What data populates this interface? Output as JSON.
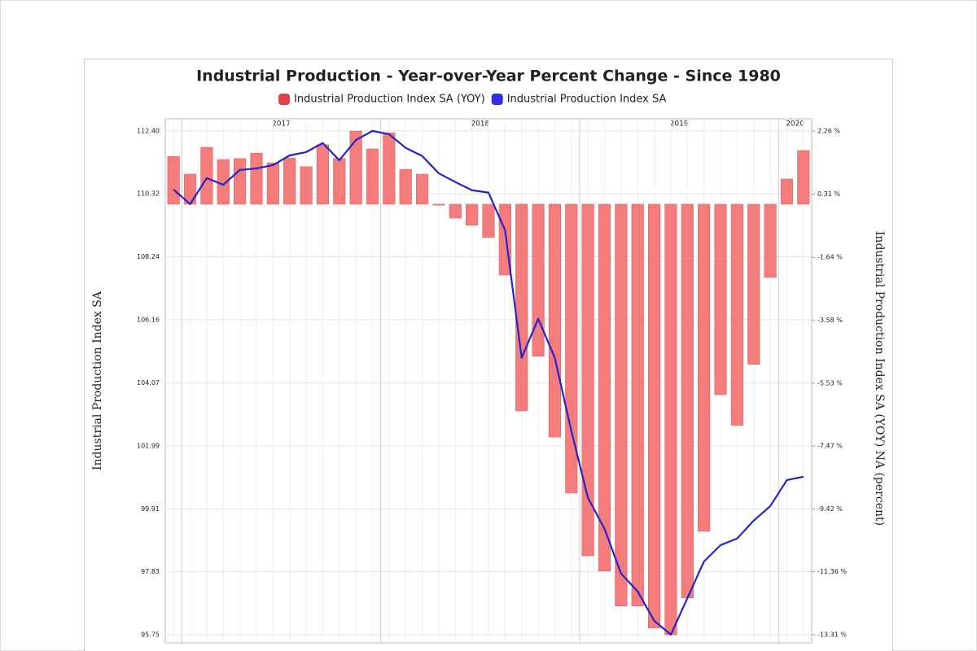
{
  "chart_data": {
    "type": "combo",
    "title": "Industrial Production - Year-over-Year Percent Change - Since 1980",
    "ylabel": "Industrial Production Index SA",
    "y2label": "Industrial Production Index SA (YOY) NA (percent)",
    "categories": [
      null,
      "2017",
      "2017",
      "2017",
      "2017",
      "2017",
      "2017",
      "2017",
      "2017",
      "2017",
      "2017",
      "2017",
      "2017",
      "2018",
      "2018",
      "2018",
      "2018",
      "2018",
      "2018",
      "2018",
      "2018",
      "2018",
      "2018",
      "2018",
      "2018",
      "2019",
      "2019",
      "2019",
      "2019",
      "2019",
      "2019",
      "2019",
      "2019",
      "2019",
      "2019",
      "2019",
      "2019",
      "2020",
      "2020"
    ],
    "series": [
      {
        "name": "Industrial Production Index SA (YOY)",
        "type": "bar",
        "axis": "y2",
        "color": "#f47c7c",
        "values": [
          1.48,
          0.93,
          1.76,
          1.38,
          1.41,
          1.58,
          1.28,
          1.43,
          1.16,
          1.84,
          1.41,
          2.26,
          1.71,
          2.21,
          1.08,
          0.93,
          -0.03,
          -0.43,
          -0.65,
          -1.03,
          -2.19,
          -6.39,
          -4.7,
          -7.2,
          -8.93,
          -10.87,
          -11.34,
          -12.42,
          -12.42,
          -13.1,
          -13.31,
          -12.17,
          -10.11,
          -5.89,
          -6.84,
          -4.95,
          -2.26,
          0.78,
          1.66
        ]
      },
      {
        "name": "Industrial Production Index SA",
        "type": "line",
        "color": "#2424c8",
        "values": [
          110.46,
          109.98,
          110.84,
          110.62,
          111.11,
          111.16,
          111.27,
          111.59,
          111.7,
          112.0,
          111.43,
          112.1,
          112.4,
          112.29,
          111.84,
          111.57,
          111.0,
          110.71,
          110.44,
          110.36,
          109.12,
          104.9,
          106.19,
          104.9,
          102.48,
          100.27,
          99.25,
          97.77,
          97.18,
          96.21,
          95.75,
          96.96,
          98.17,
          98.71,
          98.93,
          99.52,
          100.0,
          100.86,
          100.97
        ]
      }
    ],
    "ylim": [
      95.48,
      112.8
    ],
    "yticks": [
      {
        "value": 112.4,
        "label": "112.40"
      },
      110.32,
      108.24,
      106.16,
      104.07,
      101.99,
      99.91,
      97.83,
      95.75
    ],
    "y2lim": [
      -13.56,
      2.64
    ],
    "y2ticks": [
      {
        "value": 2.26,
        "label": "2.26 %"
      },
      {
        "value": 0.31,
        "label": "0.31 %"
      },
      {
        "value": -1.64,
        "label": "-1.64 %"
      },
      {
        "value": -3.58,
        "label": "-3.58 %"
      },
      {
        "value": -5.53,
        "label": "-5.53 %"
      },
      {
        "value": -7.47,
        "label": "-7.47 %"
      },
      {
        "value": -9.42,
        "label": "-9.42 %"
      },
      {
        "value": -11.36,
        "label": "-11.36 %"
      },
      {
        "value": -13.31,
        "label": "-13.31 %"
      }
    ],
    "grid": true
  }
}
